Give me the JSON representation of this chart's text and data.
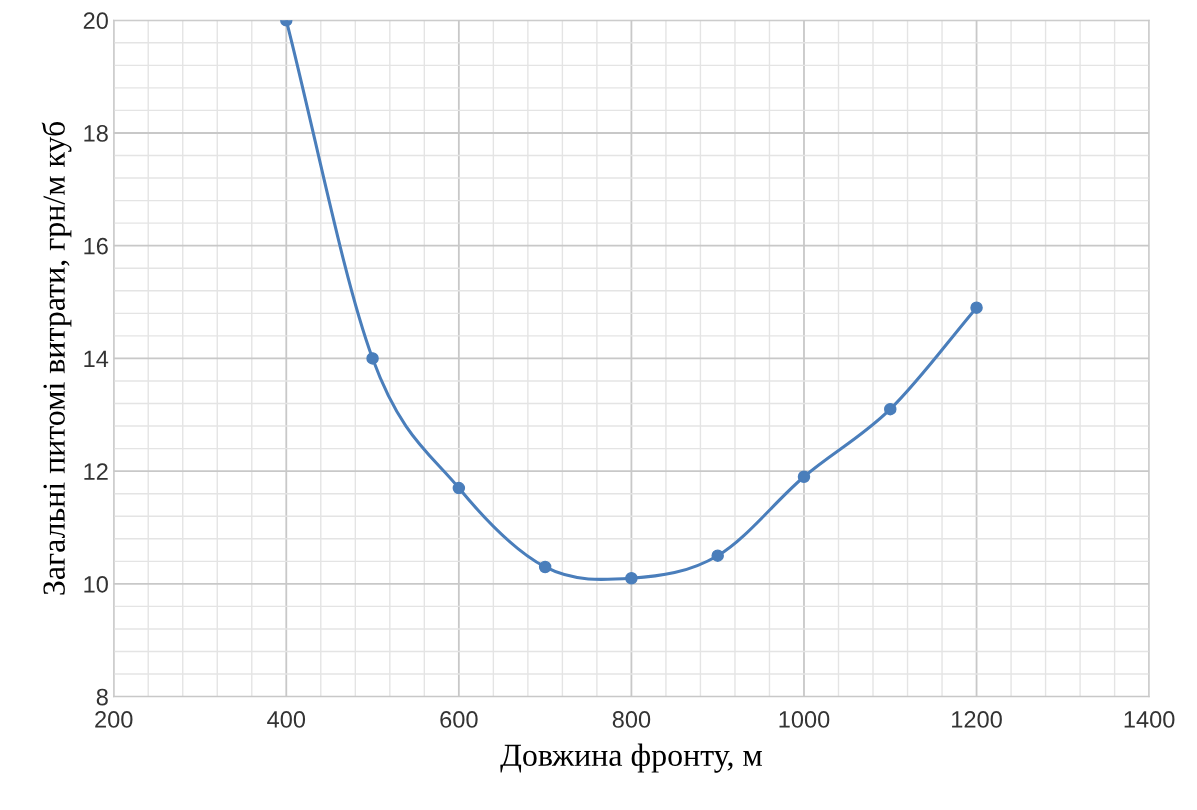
{
  "chart_data": {
    "type": "line",
    "xlabel": "Довжина фронту, м",
    "ylabel": "Загальні питомі витрати, грн/м куб",
    "x": [
      400,
      500,
      600,
      700,
      800,
      900,
      1000,
      1100,
      1200
    ],
    "series": [
      {
        "color": "#4a7ebb",
        "values": [
          20,
          14.0,
          11.7,
          10.3,
          10.1,
          10.5,
          11.9,
          13.1,
          14.9
        ]
      }
    ],
    "xlim": [
      200,
      1400
    ],
    "xticks": [
      200,
      400,
      600,
      800,
      1000,
      1200,
      1400
    ],
    "ylim": [
      8,
      20
    ],
    "yticks": [
      8,
      10,
      12,
      14,
      16,
      18,
      20
    ],
    "grid": true,
    "marker": "circle",
    "line_style": "solid",
    "legend": false
  }
}
